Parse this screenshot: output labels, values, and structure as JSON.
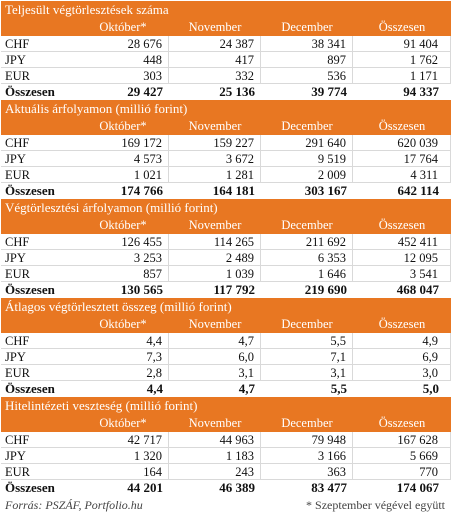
{
  "sections": [
    {
      "title": "Teljesült végtörlesztések száma",
      "columns": [
        "Október*",
        "November",
        "December",
        "Összesen"
      ],
      "rows": [
        {
          "label": "CHF",
          "values": [
            "28 676",
            "24 387",
            "38 341",
            "91 404"
          ]
        },
        {
          "label": "JPY",
          "values": [
            "448",
            "417",
            "897",
            "1 762"
          ]
        },
        {
          "label": "EUR",
          "values": [
            "303",
            "332",
            "536",
            "1 171"
          ]
        }
      ],
      "total": {
        "label": "Összesen",
        "values": [
          "29 427",
          "25 136",
          "39 774",
          "94 337"
        ]
      }
    },
    {
      "title": "Aktuális árfolyamon (millió forint)",
      "columns": [
        "Október*",
        "November",
        "December",
        "Összesen"
      ],
      "rows": [
        {
          "label": "CHF",
          "values": [
            "169 172",
            "159 227",
            "291 640",
            "620 039"
          ]
        },
        {
          "label": "JPY",
          "values": [
            "4 573",
            "3 672",
            "9 519",
            "17 764"
          ]
        },
        {
          "label": "EUR",
          "values": [
            "1 021",
            "1 281",
            "2 009",
            "4 311"
          ]
        }
      ],
      "total": {
        "label": "Összesen",
        "values": [
          "174 766",
          "164 181",
          "303 167",
          "642 114"
        ]
      }
    },
    {
      "title": "Végtörlesztési árfolyamon (millió forint)",
      "columns": [
        "Október*",
        "November",
        "December",
        "Összesen"
      ],
      "rows": [
        {
          "label": "CHF",
          "values": [
            "126 455",
            "114 265",
            "211 692",
            "452 411"
          ]
        },
        {
          "label": "JPY",
          "values": [
            "3 253",
            "2 489",
            "6 353",
            "12 095"
          ]
        },
        {
          "label": "EUR",
          "values": [
            "857",
            "1 039",
            "1 646",
            "3 541"
          ]
        }
      ],
      "total": {
        "label": "Összesen",
        "values": [
          "130 565",
          "117 792",
          "219 690",
          "468 047"
        ]
      }
    },
    {
      "title": "Átlagos végtörlesztett összeg (millió forint)",
      "columns": [
        "Október*",
        "November",
        "December",
        "Összesen"
      ],
      "rows": [
        {
          "label": "CHF",
          "values": [
            "4,4",
            "4,7",
            "5,5",
            "4,9"
          ]
        },
        {
          "label": "JPY",
          "values": [
            "7,3",
            "6,0",
            "7,1",
            "6,9"
          ]
        },
        {
          "label": "EUR",
          "values": [
            "2,8",
            "3,1",
            "3,1",
            "3,0"
          ]
        }
      ],
      "total": {
        "label": "Összesen",
        "values": [
          "4,4",
          "4,7",
          "5,5",
          "5,0"
        ]
      }
    },
    {
      "title": "Hitelintézeti veszteség (millió forint)",
      "columns": [
        "Október*",
        "November",
        "December",
        "Összesen"
      ],
      "rows": [
        {
          "label": "CHF",
          "values": [
            "42 717",
            "44 963",
            "79 948",
            "167 628"
          ]
        },
        {
          "label": "JPY",
          "values": [
            "1 320",
            "1 183",
            "3 166",
            "5 669"
          ]
        },
        {
          "label": "EUR",
          "values": [
            "164",
            "243",
            "363",
            "770"
          ]
        }
      ],
      "total": {
        "label": "Összesen",
        "values": [
          "44 201",
          "46 389",
          "83 477",
          "174 067"
        ]
      }
    }
  ],
  "footer": {
    "source": "Forrás: PSZÁF, Portfolio.hu",
    "note": "* Szeptember végével együtt"
  },
  "colors": {
    "header_bg": "#e87722",
    "header_text": "#ffffff",
    "row_border": "#d9d9d9"
  }
}
